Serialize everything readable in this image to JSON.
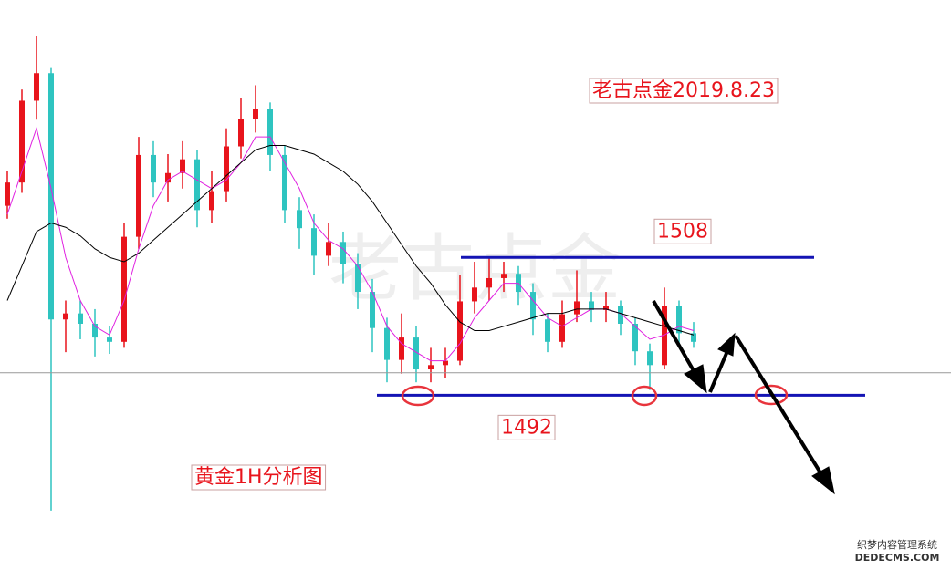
{
  "chart_data": {
    "type": "candlestick",
    "title": "老古点金2019.8.23",
    "subtitle": "黄金1H分析图",
    "watermark": "老古点金",
    "footer": [
      "织梦内容管理系统",
      "DEDECMS.COM"
    ],
    "ylim": [
      1471.7,
      1537.9
    ],
    "levels": [
      1508,
      1492
    ],
    "current_price": 1494.6,
    "up_color": "#e8141c",
    "down_color": "#2ec4c0",
    "open": [
      1514,
      1516.7,
      1526.2,
      1529.4,
      1500.8,
      1501.5,
      1500.3,
      1498.7,
      1498.2,
      1510.4,
      1519.9,
      1516.7,
      1517.8,
      1519.4,
      1513.5,
      1515.7,
      1520.9,
      1524.1,
      1525.2,
      1519.9,
      1513.5,
      1511.4,
      1508.2,
      1509.8,
      1507.2,
      1504,
      1499.8,
      1496.1,
      1498.7,
      1495,
      1495.5,
      1496,
      1502.9,
      1504.5,
      1505.6,
      1506.1,
      1504,
      1500.8,
      1498.2,
      1501.4,
      1502.9,
      1501.9,
      1502.4,
      1500.3,
      1497.1,
      1495.5,
      1502.4,
      1499.2
    ],
    "high": [
      1518,
      1527.5,
      1533.7,
      1530,
      1503,
      1503,
      1502,
      1500,
      1512,
      1522,
      1521.5,
      1520,
      1521.5,
      1520.5,
      1518,
      1523,
      1526.5,
      1528,
      1526,
      1521,
      1515,
      1513,
      1512,
      1511,
      1508.5,
      1505.5,
      1501,
      1501.5,
      1500,
      1497.5,
      1497.5,
      1506,
      1507.5,
      1508,
      1507.5,
      1507,
      1505,
      1501.5,
      1503,
      1506.5,
      1504,
      1504,
      1503,
      1501,
      1498,
      1504.5,
      1503,
      1500.5
    ],
    "low": [
      1512.5,
      1515.5,
      1524,
      1478.6,
      1497,
      1498.5,
      1496.5,
      1496.8,
      1497.5,
      1509,
      1515,
      1514.5,
      1516,
      1511.5,
      1512,
      1514.5,
      1519.5,
      1522.5,
      1518,
      1512,
      1509,
      1506,
      1507,
      1505,
      1502,
      1497,
      1493.5,
      1494.5,
      1493.5,
      1493.5,
      1494,
      1495.5,
      1501.5,
      1503,
      1504,
      1502.5,
      1499,
      1497,
      1497.5,
      1500.5,
      1500.5,
      1500.5,
      1499,
      1495.5,
      1492.6,
      1495,
      1498,
      1497.5
    ],
    "close": [
      1516.7,
      1526.2,
      1529.4,
      1500.8,
      1501.5,
      1500.3,
      1498.7,
      1498.2,
      1510.4,
      1519.9,
      1516.7,
      1517.8,
      1519.4,
      1513.5,
      1515.7,
      1520.9,
      1524.1,
      1525.2,
      1519.9,
      1513.5,
      1511.4,
      1508.2,
      1509.8,
      1507.2,
      1504,
      1499.8,
      1496.1,
      1498.7,
      1495,
      1495.5,
      1496,
      1502.9,
      1504.5,
      1505.6,
      1506.1,
      1504,
      1500.8,
      1498.2,
      1501.4,
      1502.9,
      1501.9,
      1502.4,
      1500.3,
      1497.1,
      1495.5,
      1502.4,
      1499.2,
      1498.2
    ],
    "series": [
      {
        "color": "#e020e0",
        "values": [
          1513,
          1518,
          1523,
          1516,
          1508,
          1503,
          1500,
          1499,
          1503,
          1509,
          1514,
          1517,
          1518,
          1517,
          1516,
          1517,
          1519,
          1522,
          1522,
          1519,
          1516,
          1512,
          1510,
          1509,
          1507,
          1504,
          1500,
          1498,
          1497,
          1496,
          1496,
          1498,
          1501,
          1503,
          1505,
          1505,
          1503,
          1501,
          1500,
          1501,
          1502,
          1502,
          1501.5,
          1500,
          1498.5,
          1499,
          1500,
          1499.5
        ]
      },
      {
        "color": "#000000",
        "values": [
          1503,
          1507,
          1511,
          1512,
          1511.5,
          1510.5,
          1509,
          1508,
          1507.5,
          1508.5,
          1510,
          1511.5,
          1513,
          1514.5,
          1516,
          1517.5,
          1519,
          1520.5,
          1521,
          1521,
          1520.5,
          1520,
          1519,
          1518,
          1516.5,
          1514.5,
          1512,
          1509.5,
          1507,
          1505,
          1502.5,
          1500.5,
          1499.5,
          1499.5,
          1500,
          1500.5,
          1501,
          1501.5,
          1501.5,
          1502,
          1502,
          1502,
          1501.5,
          1501,
          1500.5,
          1500,
          1499.5,
          1499
        ]
      }
    ]
  }
}
